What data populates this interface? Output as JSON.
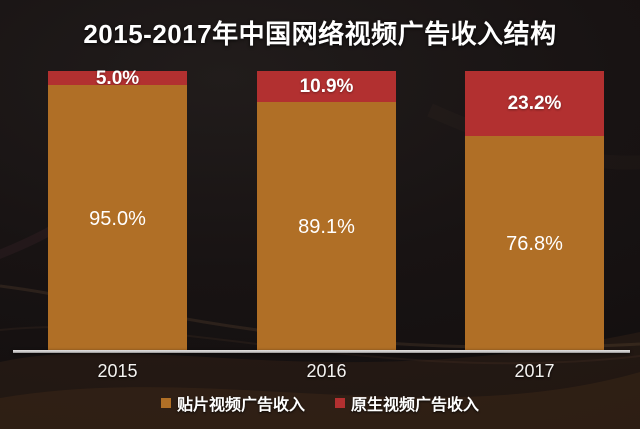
{
  "title": "2015-2017年中国网络视频广告收入结构",
  "chart_data": {
    "type": "bar",
    "stacked": true,
    "percent_stacked": true,
    "unit": "%",
    "title": "2015-2017年中国网络视频广告收入结构",
    "categories": [
      "2015",
      "2016",
      "2017"
    ],
    "series": [
      {
        "name": "贴片视频广告收入",
        "color": "#B06F26",
        "values": [
          95.0,
          89.1,
          76.8
        ],
        "labels": [
          "95.0%",
          "89.1%",
          "76.8%"
        ]
      },
      {
        "name": "原生视频广告收入",
        "color": "#B23030",
        "values": [
          5.0,
          10.9,
          23.2
        ],
        "labels": [
          "5.0%",
          "10.9%",
          "23.2%"
        ]
      }
    ],
    "ylim": [
      0,
      100
    ],
    "xlabel": "",
    "ylabel": "",
    "grid": false,
    "legend_position": "bottom",
    "background": "dark"
  },
  "colors": {
    "background": "#171212",
    "bar_preroll": "#B06F26",
    "bar_native": "#B23030",
    "axis_line": "#C9C7C7",
    "text": "#FFFFFF"
  }
}
